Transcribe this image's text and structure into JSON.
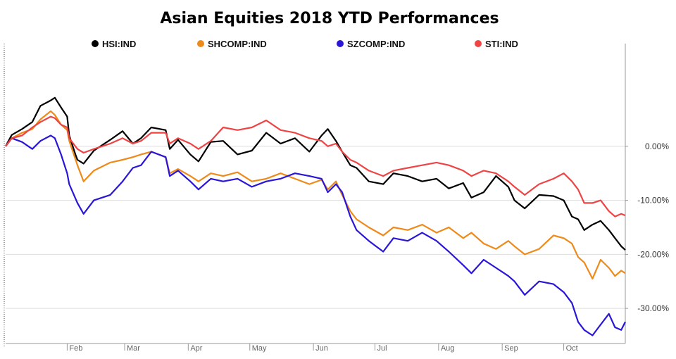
{
  "chart_data": {
    "type": "line",
    "title": "Asian Equities 2018 YTD Performances",
    "xlabel": "",
    "ylabel": "",
    "y_format": "percent_2dp",
    "ylim": [
      -36.5,
      19
    ],
    "yticks": [
      0,
      -10,
      -20,
      -30
    ],
    "ytick_labels": [
      "0.00%",
      "-10.00%",
      "-20.00%",
      "-30.00%"
    ],
    "xlim": [
      "2018-01-02",
      "2018-10-31"
    ],
    "xticks": [
      {
        "label": "Feb",
        "date": "2018-02-01"
      },
      {
        "label": "Mar",
        "date": "2018-03-01"
      },
      {
        "label": "Apr",
        "date": "2018-04-01"
      },
      {
        "label": "May",
        "date": "2018-05-01"
      },
      {
        "label": "Jun",
        "date": "2018-06-01"
      },
      {
        "label": "Jul",
        "date": "2018-07-01"
      },
      {
        "label": "Aug",
        "date": "2018-08-01"
      },
      {
        "label": "Sep",
        "date": "2018-09-01"
      },
      {
        "label": "Oct",
        "date": "2018-10-01"
      }
    ],
    "grid": "horizontal",
    "legend": "top",
    "series": [
      {
        "name": "HSI:IND",
        "color": "#000000",
        "points": [
          [
            "2018-01-02",
            0.0
          ],
          [
            "2018-01-05",
            2.1
          ],
          [
            "2018-01-10",
            3.2
          ],
          [
            "2018-01-15",
            4.5
          ],
          [
            "2018-01-19",
            7.5
          ],
          [
            "2018-01-24",
            8.5
          ],
          [
            "2018-01-26",
            9.0
          ],
          [
            "2018-01-29",
            7.2
          ],
          [
            "2018-02-01",
            5.5
          ],
          [
            "2018-02-02",
            2.0
          ],
          [
            "2018-02-05",
            -1.5
          ],
          [
            "2018-02-06",
            -2.5
          ],
          [
            "2018-02-09",
            -3.2
          ],
          [
            "2018-02-14",
            -0.8
          ],
          [
            "2018-02-22",
            1.2
          ],
          [
            "2018-02-28",
            2.8
          ],
          [
            "2018-03-05",
            0.5
          ],
          [
            "2018-03-09",
            1.5
          ],
          [
            "2018-03-14",
            3.5
          ],
          [
            "2018-03-21",
            3.0
          ],
          [
            "2018-03-23",
            -0.5
          ],
          [
            "2018-03-27",
            1.2
          ],
          [
            "2018-04-02",
            -1.5
          ],
          [
            "2018-04-06",
            -2.8
          ],
          [
            "2018-04-12",
            0.8
          ],
          [
            "2018-04-18",
            1.0
          ],
          [
            "2018-04-25",
            -1.5
          ],
          [
            "2018-05-02",
            -0.8
          ],
          [
            "2018-05-09",
            2.5
          ],
          [
            "2018-05-16",
            0.5
          ],
          [
            "2018-05-23",
            1.5
          ],
          [
            "2018-05-30",
            -1.0
          ],
          [
            "2018-06-05",
            2.0
          ],
          [
            "2018-06-08",
            3.2
          ],
          [
            "2018-06-12",
            1.0
          ],
          [
            "2018-06-15",
            -1.0
          ],
          [
            "2018-06-19",
            -3.5
          ],
          [
            "2018-06-22",
            -4.0
          ],
          [
            "2018-06-28",
            -6.5
          ],
          [
            "2018-07-05",
            -7.0
          ],
          [
            "2018-07-10",
            -5.0
          ],
          [
            "2018-07-17",
            -5.5
          ],
          [
            "2018-07-24",
            -6.5
          ],
          [
            "2018-07-31",
            -6.0
          ],
          [
            "2018-08-06",
            -7.8
          ],
          [
            "2018-08-13",
            -6.8
          ],
          [
            "2018-08-17",
            -9.5
          ],
          [
            "2018-08-23",
            -8.5
          ],
          [
            "2018-08-29",
            -5.5
          ],
          [
            "2018-09-04",
            -7.5
          ],
          [
            "2018-09-07",
            -10.0
          ],
          [
            "2018-09-12",
            -11.5
          ],
          [
            "2018-09-19",
            -9.0
          ],
          [
            "2018-09-26",
            -9.2
          ],
          [
            "2018-10-01",
            -10.0
          ],
          [
            "2018-10-05",
            -13.0
          ],
          [
            "2018-10-08",
            -13.5
          ],
          [
            "2018-10-11",
            -15.5
          ],
          [
            "2018-10-15",
            -14.5
          ],
          [
            "2018-10-19",
            -13.8
          ],
          [
            "2018-10-23",
            -15.5
          ],
          [
            "2018-10-26",
            -17.0
          ],
          [
            "2018-10-29",
            -18.5
          ],
          [
            "2018-10-31",
            -19.2
          ]
        ]
      },
      {
        "name": "SHCOMP:IND",
        "color": "#ee8a1a",
        "points": [
          [
            "2018-01-02",
            0.0
          ],
          [
            "2018-01-05",
            1.5
          ],
          [
            "2018-01-10",
            2.5
          ],
          [
            "2018-01-15",
            3.2
          ],
          [
            "2018-01-19",
            5.0
          ],
          [
            "2018-01-24",
            6.5
          ],
          [
            "2018-01-26",
            5.8
          ],
          [
            "2018-01-29",
            4.0
          ],
          [
            "2018-02-01",
            3.0
          ],
          [
            "2018-02-02",
            1.0
          ],
          [
            "2018-02-06",
            -3.5
          ],
          [
            "2018-02-09",
            -6.5
          ],
          [
            "2018-02-14",
            -4.5
          ],
          [
            "2018-02-22",
            -3.0
          ],
          [
            "2018-02-28",
            -2.5
          ],
          [
            "2018-03-05",
            -2.0
          ],
          [
            "2018-03-09",
            -1.5
          ],
          [
            "2018-03-14",
            -1.0
          ],
          [
            "2018-03-21",
            -2.0
          ],
          [
            "2018-03-23",
            -5.0
          ],
          [
            "2018-03-27",
            -4.2
          ],
          [
            "2018-04-02",
            -5.5
          ],
          [
            "2018-04-06",
            -6.5
          ],
          [
            "2018-04-12",
            -5.0
          ],
          [
            "2018-04-18",
            -5.5
          ],
          [
            "2018-04-25",
            -4.8
          ],
          [
            "2018-05-02",
            -6.5
          ],
          [
            "2018-05-09",
            -6.0
          ],
          [
            "2018-05-16",
            -5.0
          ],
          [
            "2018-05-23",
            -6.0
          ],
          [
            "2018-05-30",
            -7.0
          ],
          [
            "2018-06-05",
            -6.2
          ],
          [
            "2018-06-08",
            -8.0
          ],
          [
            "2018-06-12",
            -6.5
          ],
          [
            "2018-06-15",
            -9.0
          ],
          [
            "2018-06-19",
            -12.0
          ],
          [
            "2018-06-22",
            -13.5
          ],
          [
            "2018-06-28",
            -15.0
          ],
          [
            "2018-07-05",
            -16.5
          ],
          [
            "2018-07-10",
            -15.0
          ],
          [
            "2018-07-17",
            -15.5
          ],
          [
            "2018-07-24",
            -14.5
          ],
          [
            "2018-07-31",
            -16.0
          ],
          [
            "2018-08-06",
            -15.0
          ],
          [
            "2018-08-13",
            -17.0
          ],
          [
            "2018-08-17",
            -16.0
          ],
          [
            "2018-08-23",
            -18.0
          ],
          [
            "2018-08-29",
            -19.0
          ],
          [
            "2018-09-04",
            -17.5
          ],
          [
            "2018-09-07",
            -18.5
          ],
          [
            "2018-09-12",
            -20.0
          ],
          [
            "2018-09-19",
            -19.0
          ],
          [
            "2018-09-26",
            -16.5
          ],
          [
            "2018-10-01",
            -17.0
          ],
          [
            "2018-10-05",
            -18.0
          ],
          [
            "2018-10-08",
            -20.5
          ],
          [
            "2018-10-11",
            -21.5
          ],
          [
            "2018-10-15",
            -24.5
          ],
          [
            "2018-10-19",
            -21.0
          ],
          [
            "2018-10-23",
            -22.5
          ],
          [
            "2018-10-26",
            -24.0
          ],
          [
            "2018-10-29",
            -23.0
          ],
          [
            "2018-10-31",
            -23.5
          ]
        ]
      },
      {
        "name": "SZCOMP:IND",
        "color": "#2a16d6",
        "points": [
          [
            "2018-01-02",
            0.0
          ],
          [
            "2018-01-05",
            1.5
          ],
          [
            "2018-01-10",
            0.8
          ],
          [
            "2018-01-15",
            -0.5
          ],
          [
            "2018-01-19",
            1.0
          ],
          [
            "2018-01-24",
            2.0
          ],
          [
            "2018-01-26",
            1.5
          ],
          [
            "2018-01-29",
            -1.5
          ],
          [
            "2018-02-01",
            -5.0
          ],
          [
            "2018-02-02",
            -7.0
          ],
          [
            "2018-02-06",
            -10.5
          ],
          [
            "2018-02-09",
            -12.5
          ],
          [
            "2018-02-14",
            -10.0
          ],
          [
            "2018-02-22",
            -9.0
          ],
          [
            "2018-02-28",
            -6.5
          ],
          [
            "2018-03-05",
            -4.0
          ],
          [
            "2018-03-09",
            -3.5
          ],
          [
            "2018-03-14",
            -1.0
          ],
          [
            "2018-03-21",
            -2.0
          ],
          [
            "2018-03-23",
            -5.5
          ],
          [
            "2018-03-27",
            -4.5
          ],
          [
            "2018-04-02",
            -6.5
          ],
          [
            "2018-04-06",
            -8.0
          ],
          [
            "2018-04-12",
            -6.0
          ],
          [
            "2018-04-18",
            -6.5
          ],
          [
            "2018-04-25",
            -6.0
          ],
          [
            "2018-05-02",
            -7.5
          ],
          [
            "2018-05-09",
            -6.5
          ],
          [
            "2018-05-16",
            -6.0
          ],
          [
            "2018-05-23",
            -5.0
          ],
          [
            "2018-05-30",
            -5.5
          ],
          [
            "2018-06-05",
            -6.0
          ],
          [
            "2018-06-08",
            -8.5
          ],
          [
            "2018-06-12",
            -7.0
          ],
          [
            "2018-06-15",
            -8.5
          ],
          [
            "2018-06-19",
            -13.0
          ],
          [
            "2018-06-22",
            -15.5
          ],
          [
            "2018-06-28",
            -17.5
          ],
          [
            "2018-07-05",
            -19.5
          ],
          [
            "2018-07-10",
            -17.0
          ],
          [
            "2018-07-17",
            -17.5
          ],
          [
            "2018-07-24",
            -16.0
          ],
          [
            "2018-07-31",
            -17.5
          ],
          [
            "2018-08-06",
            -19.5
          ],
          [
            "2018-08-13",
            -22.0
          ],
          [
            "2018-08-17",
            -23.5
          ],
          [
            "2018-08-23",
            -21.0
          ],
          [
            "2018-08-29",
            -22.5
          ],
          [
            "2018-09-04",
            -24.0
          ],
          [
            "2018-09-07",
            -25.0
          ],
          [
            "2018-09-12",
            -27.5
          ],
          [
            "2018-09-19",
            -25.0
          ],
          [
            "2018-09-26",
            -25.5
          ],
          [
            "2018-10-01",
            -27.0
          ],
          [
            "2018-10-05",
            -29.0
          ],
          [
            "2018-10-08",
            -32.5
          ],
          [
            "2018-10-11",
            -34.0
          ],
          [
            "2018-10-15",
            -35.0
          ],
          [
            "2018-10-19",
            -33.0
          ],
          [
            "2018-10-23",
            -31.0
          ],
          [
            "2018-10-26",
            -33.5
          ],
          [
            "2018-10-29",
            -34.0
          ],
          [
            "2018-10-31",
            -32.5
          ]
        ]
      },
      {
        "name": "STI:IND",
        "color": "#ee4444",
        "points": [
          [
            "2018-01-02",
            0.0
          ],
          [
            "2018-01-05",
            1.5
          ],
          [
            "2018-01-10",
            2.0
          ],
          [
            "2018-01-15",
            3.5
          ],
          [
            "2018-01-19",
            4.5
          ],
          [
            "2018-01-24",
            5.5
          ],
          [
            "2018-01-26",
            5.2
          ],
          [
            "2018-01-29",
            4.0
          ],
          [
            "2018-02-01",
            3.5
          ],
          [
            "2018-02-02",
            1.5
          ],
          [
            "2018-02-06",
            -0.5
          ],
          [
            "2018-02-09",
            -1.2
          ],
          [
            "2018-02-14",
            -0.5
          ],
          [
            "2018-02-22",
            0.5
          ],
          [
            "2018-02-28",
            1.5
          ],
          [
            "2018-03-05",
            0.5
          ],
          [
            "2018-03-09",
            1.0
          ],
          [
            "2018-03-14",
            2.5
          ],
          [
            "2018-03-21",
            2.5
          ],
          [
            "2018-03-23",
            0.5
          ],
          [
            "2018-03-27",
            1.5
          ],
          [
            "2018-04-02",
            0.5
          ],
          [
            "2018-04-06",
            -0.5
          ],
          [
            "2018-04-12",
            1.0
          ],
          [
            "2018-04-18",
            3.5
          ],
          [
            "2018-04-25",
            3.0
          ],
          [
            "2018-05-02",
            3.5
          ],
          [
            "2018-05-09",
            4.8
          ],
          [
            "2018-05-16",
            3.0
          ],
          [
            "2018-05-23",
            2.5
          ],
          [
            "2018-05-30",
            1.5
          ],
          [
            "2018-06-05",
            1.0
          ],
          [
            "2018-06-08",
            0.0
          ],
          [
            "2018-06-12",
            0.5
          ],
          [
            "2018-06-15",
            -1.0
          ],
          [
            "2018-06-19",
            -2.5
          ],
          [
            "2018-06-22",
            -3.0
          ],
          [
            "2018-06-28",
            -4.5
          ],
          [
            "2018-07-05",
            -5.5
          ],
          [
            "2018-07-10",
            -4.5
          ],
          [
            "2018-07-17",
            -4.0
          ],
          [
            "2018-07-24",
            -3.5
          ],
          [
            "2018-07-31",
            -3.0
          ],
          [
            "2018-08-06",
            -3.5
          ],
          [
            "2018-08-13",
            -4.5
          ],
          [
            "2018-08-17",
            -5.5
          ],
          [
            "2018-08-23",
            -4.5
          ],
          [
            "2018-08-29",
            -5.0
          ],
          [
            "2018-09-04",
            -6.5
          ],
          [
            "2018-09-07",
            -7.5
          ],
          [
            "2018-09-12",
            -9.0
          ],
          [
            "2018-09-19",
            -7.0
          ],
          [
            "2018-09-26",
            -6.0
          ],
          [
            "2018-10-01",
            -5.0
          ],
          [
            "2018-10-05",
            -6.5
          ],
          [
            "2018-10-08",
            -8.0
          ],
          [
            "2018-10-11",
            -10.5
          ],
          [
            "2018-10-15",
            -10.5
          ],
          [
            "2018-10-19",
            -10.0
          ],
          [
            "2018-10-23",
            -12.0
          ],
          [
            "2018-10-26",
            -13.0
          ],
          [
            "2018-10-29",
            -12.5
          ],
          [
            "2018-10-31",
            -12.8
          ]
        ]
      }
    ]
  }
}
